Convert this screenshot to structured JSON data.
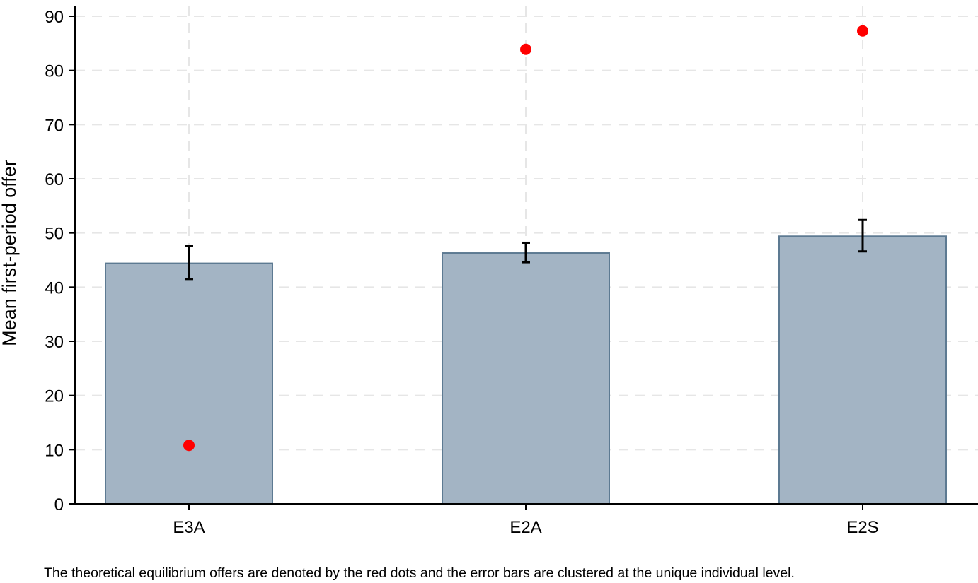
{
  "chart_data": {
    "type": "bar",
    "categories": [
      "E3A",
      "E2A",
      "E2S"
    ],
    "series": [
      {
        "values": [
          44.4,
          46.3,
          49.4
        ],
        "error_low": [
          41.5,
          44.6,
          46.6
        ],
        "error_high": [
          47.6,
          48.2,
          52.4
        ]
      },
      {
        "values": [
          10.8,
          83.9,
          87.3
        ]
      }
    ],
    "ylabel": "Mean first-period offer",
    "xlabel": "",
    "ylim": [
      0,
      90
    ],
    "yticks": [
      0,
      10,
      20,
      30,
      40,
      50,
      60,
      70,
      80,
      90
    ],
    "grid": true,
    "note": "The theoretical equilibrium offers are denoted by the red dots and the error bars are clustered at the unique individual level.",
    "colors": {
      "bar_fill": "#a3b4c4",
      "bar_stroke": "#5d7a92",
      "dot": "#ff0000",
      "grid": "#e6e6e6",
      "errorbar": "#000000"
    }
  }
}
